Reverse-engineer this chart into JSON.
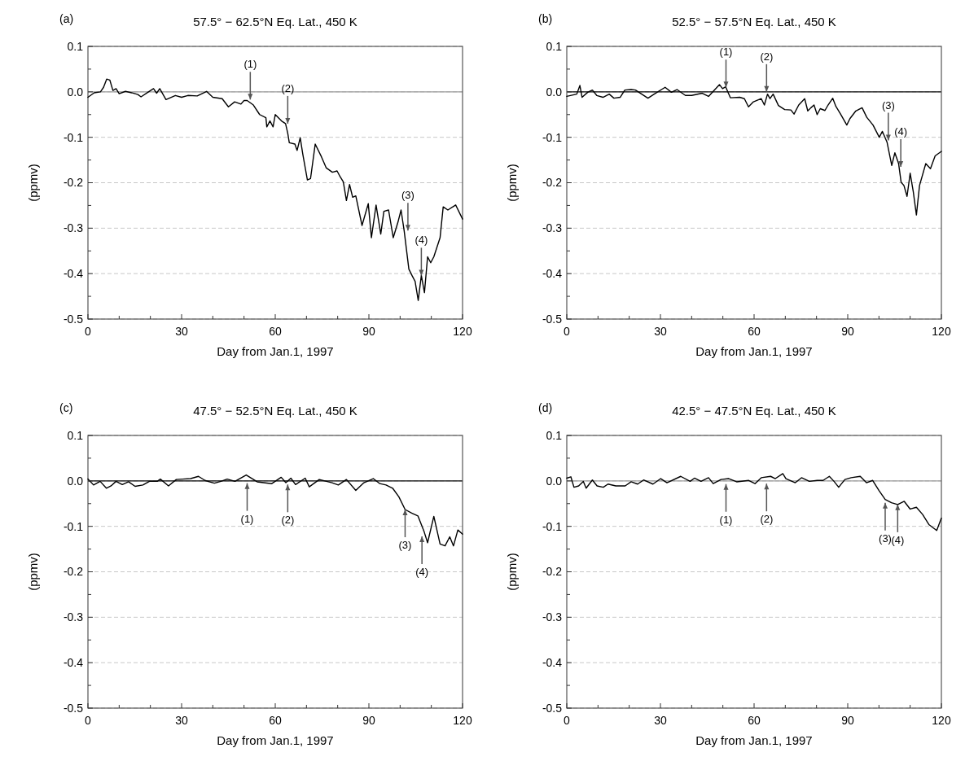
{
  "chart_data": [
    {
      "type": "line",
      "title": "57.5° − 62.5°N Eq. Lat., 450 K",
      "xlabel": "Day from Jan.1, 1997",
      "ylabel": "(ppmv)",
      "xlim": [
        0,
        120
      ],
      "ylim": [
        -0.5,
        0.1
      ],
      "xticks": [
        0,
        {
          "value": 10,
          "label": null
        },
        {
          "value": 20,
          "label": null
        },
        30,
        {
          "value": 40,
          "label": null
        },
        {
          "value": 50,
          "label": null
        },
        60,
        {
          "value": 70,
          "label": null
        },
        {
          "value": 80,
          "label": null
        },
        90,
        {
          "value": 100,
          "label": null
        },
        {
          "value": 110,
          "label": null
        },
        120
      ],
      "yticks": [
        -0.5,
        {
          "value": -0.45,
          "label": null
        },
        -0.4,
        {
          "value": -0.35,
          "label": null
        },
        -0.3,
        {
          "value": -0.25,
          "label": null
        },
        -0.2,
        {
          "value": -0.15,
          "label": null
        },
        -0.1,
        {
          "value": -0.05,
          "label": null
        },
        {
          "value": 0,
          "label": "0.0"
        },
        {
          "value": 0.05,
          "label": null
        },
        0.1
      ],
      "grid": "y",
      "ref_lines": [
        {
          "axis": "y",
          "value": 0,
          "color": "#999999"
        }
      ],
      "annotations": [
        "(a)",
        {
          "text": "(1)",
          "x": 52,
          "y": -0.017
        },
        {
          "text": "(2)",
          "x": 64,
          "y": -0.07
        },
        {
          "text": "(3)",
          "x": 102.5,
          "y": -0.305
        },
        {
          "text": "(4)",
          "x": 106.8,
          "y": -0.404
        }
      ],
      "series": [
        {
          "color": "#000000",
          "x": [
            0,
            2,
            4,
            5,
            6,
            7,
            8,
            9,
            10,
            12,
            14,
            16,
            17,
            19,
            21,
            22,
            23,
            25,
            28,
            30,
            32,
            35,
            38,
            40,
            43,
            45,
            47,
            49,
            50,
            51,
            53,
            55,
            57,
            57.3,
            58.3,
            59.3,
            60,
            62,
            63.3,
            64,
            64.5,
            66.3,
            67,
            68,
            68.8,
            69.6,
            70.3,
            71.3,
            72.8,
            74.8,
            76.3,
            78.3,
            79.8,
            80.8,
            81.8,
            82.8,
            83.8,
            84.8,
            85.8,
            87.8,
            89.8,
            90.8,
            92.3,
            93.8,
            94.8,
            96.3,
            97.8,
            99.3,
            100.3,
            101.3,
            102.8,
            103.8,
            104.8,
            105.8,
            106.8,
            107.8,
            108.8,
            109.8,
            110.8,
            112.8,
            113.8,
            115.3,
            117.8,
            120
          ],
          "values": [
            -0.012,
            -0.002,
            0.0,
            0.01,
            0.028,
            0.026,
            0.003,
            0.007,
            -0.004,
            0.001,
            -0.002,
            -0.006,
            -0.011,
            -0.002,
            0.007,
            -0.003,
            0.007,
            -0.017,
            -0.008,
            -0.012,
            -0.008,
            -0.009,
            0.001,
            -0.012,
            -0.015,
            -0.033,
            -0.022,
            -0.027,
            -0.019,
            -0.019,
            -0.029,
            -0.05,
            -0.057,
            -0.077,
            -0.064,
            -0.077,
            -0.05,
            -0.064,
            -0.07,
            -0.091,
            -0.112,
            -0.115,
            -0.129,
            -0.101,
            -0.136,
            -0.167,
            -0.194,
            -0.191,
            -0.115,
            -0.143,
            -0.167,
            -0.177,
            -0.174,
            -0.187,
            -0.198,
            -0.239,
            -0.204,
            -0.232,
            -0.229,
            -0.294,
            -0.246,
            -0.321,
            -0.249,
            -0.313,
            -0.263,
            -0.26,
            -0.321,
            -0.287,
            -0.26,
            -0.306,
            -0.39,
            -0.404,
            -0.417,
            -0.459,
            -0.404,
            -0.442,
            -0.363,
            -0.376,
            -0.363,
            -0.321,
            -0.253,
            -0.26,
            -0.249,
            -0.28
          ]
        }
      ]
    },
    {
      "type": "line",
      "title": "52.5° − 57.5°N Eq. Lat., 450 K",
      "xlabel": "Day from Jan.1, 1997",
      "ylabel": "(ppmv)",
      "xlim": [
        0,
        120
      ],
      "ylim": [
        -0.5,
        0.1
      ],
      "xticks": [
        0,
        {
          "value": 10,
          "label": null
        },
        {
          "value": 20,
          "label": null
        },
        30,
        {
          "value": 40,
          "label": null
        },
        {
          "value": 50,
          "label": null
        },
        60,
        {
          "value": 70,
          "label": null
        },
        {
          "value": 80,
          "label": null
        },
        90,
        {
          "value": 100,
          "label": null
        },
        {
          "value": 110,
          "label": null
        },
        120
      ],
      "yticks": [
        -0.5,
        {
          "value": -0.45,
          "label": null
        },
        -0.4,
        {
          "value": -0.35,
          "label": null
        },
        -0.3,
        {
          "value": -0.25,
          "label": null
        },
        -0.2,
        {
          "value": -0.15,
          "label": null
        },
        -0.1,
        {
          "value": -0.05,
          "label": null
        },
        {
          "value": 0,
          "label": "0.0"
        },
        {
          "value": 0.05,
          "label": null
        },
        0.1
      ],
      "grid": "y",
      "ref_lines": [
        {
          "axis": "y",
          "value": 0,
          "color": "#000000"
        }
      ],
      "annotations": [
        "(b)",
        {
          "text": "(1)",
          "x": 51,
          "y": 0.01
        },
        {
          "text": "(2)",
          "x": 64,
          "y": 0
        },
        {
          "text": "(3)",
          "x": 103,
          "y": -0.107
        },
        {
          "text": "(4)",
          "x": 107,
          "y": -0.165
        }
      ],
      "series": [
        {
          "color": "#000000",
          "x": [
            0,
            3.2,
            4.2,
            4.9,
            6.7,
            8.2,
            9.6,
            11.6,
            13.6,
            15.1,
            17.1,
            18.6,
            20.6,
            22,
            26,
            28,
            31.5,
            33.5,
            35.3,
            38,
            40,
            43.4,
            45.4,
            48.9,
            49.9,
            50.9,
            52.4,
            55.4,
            56.9,
            58.2,
            59.8,
            62.3,
            63.3,
            64.3,
            65.1,
            66.1,
            67.8,
            69.8,
            71.8,
            72.8,
            74.3,
            76.2,
            77.2,
            78.2,
            79.2,
            80.2,
            81.2,
            82.7,
            83.7,
            85.2,
            86.2,
            87.7,
            89.7,
            90.7,
            92.6,
            94.6,
            96.1,
            98.1,
            100.1,
            101.1,
            102.6,
            104.1,
            105.1,
            106.3,
            107.1,
            108,
            109,
            110,
            111,
            112,
            113,
            115,
            116.5,
            118,
            120
          ],
          "values": [
            -0.01,
            -0.005,
            0.014,
            -0.012,
            -0.001,
            0.004,
            -0.008,
            -0.012,
            -0.005,
            -0.014,
            -0.012,
            0.004,
            0.005,
            0.004,
            -0.014,
            -0.005,
            0.01,
            -0.001,
            0.005,
            -0.008,
            -0.008,
            -0.003,
            -0.01,
            0.016,
            0.007,
            0.011,
            -0.013,
            -0.012,
            -0.015,
            -0.033,
            -0.022,
            -0.015,
            -0.029,
            -0.005,
            -0.015,
            -0.005,
            -0.03,
            -0.039,
            -0.04,
            -0.049,
            -0.029,
            -0.015,
            -0.042,
            -0.035,
            -0.029,
            -0.05,
            -0.037,
            -0.041,
            -0.029,
            -0.014,
            -0.032,
            -0.049,
            -0.073,
            -0.059,
            -0.042,
            -0.035,
            -0.056,
            -0.073,
            -0.1,
            -0.087,
            -0.111,
            -0.162,
            -0.134,
            -0.158,
            -0.199,
            -0.206,
            -0.23,
            -0.179,
            -0.22,
            -0.271,
            -0.206,
            -0.158,
            -0.169,
            -0.141,
            -0.131
          ]
        }
      ]
    },
    {
      "type": "line",
      "title": "47.5° − 52.5°N Eq. Lat., 450 K",
      "xlabel": "Day from Jan.1, 1997",
      "ylabel": "(ppmv)",
      "xlim": [
        0,
        120
      ],
      "ylim": [
        -0.5,
        0.1
      ],
      "xticks": [
        0,
        {
          "value": 10,
          "label": null
        },
        {
          "value": 20,
          "label": null
        },
        30,
        {
          "value": 40,
          "label": null
        },
        {
          "value": 50,
          "label": null
        },
        60,
        {
          "value": 70,
          "label": null
        },
        {
          "value": 80,
          "label": null
        },
        90,
        {
          "value": 100,
          "label": null
        },
        {
          "value": 110,
          "label": null
        },
        120
      ],
      "yticks": [
        -0.5,
        {
          "value": -0.45,
          "label": null
        },
        -0.4,
        {
          "value": -0.35,
          "label": null
        },
        -0.3,
        {
          "value": -0.25,
          "label": null
        },
        -0.2,
        {
          "value": -0.15,
          "label": null
        },
        -0.1,
        {
          "value": -0.05,
          "label": null
        },
        {
          "value": 0,
          "label": "0.0"
        },
        {
          "value": 0.05,
          "label": null
        },
        0.1
      ],
      "grid": "y",
      "ref_lines": [
        {
          "axis": "y",
          "value": 0,
          "color": "#000000"
        }
      ],
      "annotations": [
        "(c)",
        {
          "text": "(1)",
          "x": 51,
          "y": -0.005
        },
        {
          "text": "(2)",
          "x": 64,
          "y": -0.008
        },
        {
          "text": "(3)",
          "x": 101.6,
          "y": -0.063
        },
        {
          "text": "(4)",
          "x": 107,
          "y": -0.122
        }
      ],
      "series": [
        {
          "color": "#000000",
          "x": [
            0,
            1.8,
            3.9,
            5.9,
            7.4,
            9,
            11,
            13,
            15.1,
            17.6,
            19.7,
            22.2,
            23.2,
            25.8,
            28.3,
            30.3,
            32.9,
            35.4,
            37.5,
            40.5,
            42.6,
            44.6,
            47.1,
            50.7,
            54.2,
            58.9,
            61.9,
            63.4,
            65,
            66.5,
            69.6,
            70.9,
            74.1,
            78.2,
            80.2,
            82.8,
            85.8,
            88.4,
            91.4,
            93.5,
            95.5,
            97.6,
            99.6,
            101.6,
            103.7,
            105.7,
            107.7,
            108.8,
            110.8,
            112.8,
            114.4,
            115.9,
            117.1,
            118.5,
            120
          ],
          "values": [
            0.004,
            -0.009,
            -0.001,
            -0.016,
            -0.011,
            -0.001,
            -0.008,
            -0.002,
            -0.012,
            -0.009,
            -0.001,
            -0.001,
            0.004,
            -0.011,
            0.003,
            0.004,
            0.005,
            0.01,
            0.001,
            -0.005,
            -0.001,
            0.004,
            -0.001,
            0.013,
            -0.002,
            -0.006,
            0.008,
            -0.004,
            0.006,
            -0.008,
            0.006,
            -0.013,
            0.003,
            -0.004,
            -0.009,
            0.003,
            -0.021,
            -0.004,
            0.005,
            -0.006,
            -0.009,
            -0.016,
            -0.035,
            -0.063,
            -0.071,
            -0.077,
            -0.112,
            -0.136,
            -0.078,
            -0.139,
            -0.143,
            -0.123,
            -0.143,
            -0.108,
            -0.117
          ]
        }
      ]
    },
    {
      "type": "line",
      "title": "42.5° − 47.5°N Eq. Lat., 450 K",
      "xlabel": "Day from Jan.1, 1997",
      "ylabel": "(ppmv)",
      "xlim": [
        0,
        120
      ],
      "ylim": [
        -0.5,
        0.1
      ],
      "xticks": [
        0,
        {
          "value": 10,
          "label": null
        },
        {
          "value": 20,
          "label": null
        },
        30,
        {
          "value": 40,
          "label": null
        },
        {
          "value": 50,
          "label": null
        },
        60,
        {
          "value": 70,
          "label": null
        },
        {
          "value": 80,
          "label": null
        },
        90,
        {
          "value": 100,
          "label": null
        },
        {
          "value": 110,
          "label": null
        },
        120
      ],
      "yticks": [
        -0.5,
        {
          "value": -0.45,
          "label": null
        },
        -0.4,
        {
          "value": -0.35,
          "label": null
        },
        -0.3,
        {
          "value": -0.25,
          "label": null
        },
        -0.2,
        {
          "value": -0.15,
          "label": null
        },
        -0.1,
        {
          "value": -0.05,
          "label": null
        },
        {
          "value": 0,
          "label": "0.0"
        },
        {
          "value": 0.05,
          "label": null
        },
        0.1
      ],
      "grid": "y",
      "ref_lines": [
        {
          "axis": "y",
          "value": 0,
          "color": "#999999"
        }
      ],
      "annotations": [
        "(d)",
        {
          "text": "(1)",
          "x": 51,
          "y": -0.007
        },
        {
          "text": "(2)",
          "x": 64,
          "y": -0.006
        },
        {
          "text": "(3)",
          "x": 102,
          "y": -0.048
        },
        {
          "text": "(4)",
          "x": 106,
          "y": -0.052
        }
      ],
      "series": [
        {
          "color": "#000000",
          "x": [
            0,
            1.3,
            2.3,
            3.8,
            5.3,
            6.2,
            8.2,
            9.7,
            11.7,
            13.2,
            15.7,
            18.7,
            20.6,
            22.7,
            24.6,
            27.6,
            30.1,
            32.1,
            36.5,
            39.5,
            40.9,
            43,
            45.4,
            46.9,
            49.4,
            51.9,
            54.4,
            58.3,
            60.3,
            62.3,
            65.3,
            66.8,
            69.2,
            70.2,
            73.2,
            75.2,
            77.7,
            80.2,
            82.1,
            84.1,
            85.6,
            87.1,
            89.1,
            91.1,
            94,
            96,
            98,
            100,
            102,
            104,
            106,
            108.1,
            110,
            112,
            114,
            116,
            118.5,
            120
          ],
          "values": [
            0.006,
            0.009,
            -0.014,
            -0.011,
            -0.001,
            -0.016,
            0.002,
            -0.011,
            -0.014,
            -0.007,
            -0.011,
            -0.011,
            -0.002,
            -0.007,
            0.002,
            -0.007,
            0.005,
            -0.004,
            0.01,
            -0.001,
            0.006,
            -0.001,
            0.007,
            -0.006,
            0.003,
            0.005,
            -0.002,
            0.001,
            -0.006,
            0.007,
            0.01,
            0.005,
            0.016,
            0.005,
            -0.004,
            0.007,
            -0.001,
            0.001,
            0.001,
            0.01,
            -0.001,
            -0.014,
            0.003,
            0.007,
            0.01,
            -0.004,
            0.001,
            -0.021,
            -0.041,
            -0.048,
            -0.052,
            -0.045,
            -0.062,
            -0.058,
            -0.074,
            -0.096,
            -0.109,
            -0.082
          ]
        }
      ]
    }
  ]
}
